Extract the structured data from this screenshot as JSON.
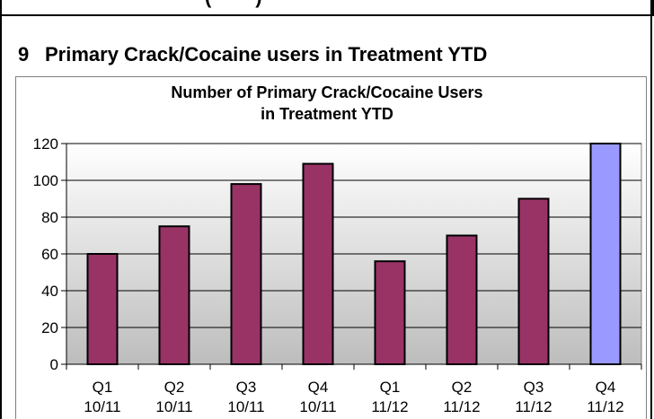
{
  "top_fragment": "(        )",
  "section": {
    "number": "9",
    "title": "Primary Crack/Cocaine users in Treatment YTD"
  },
  "chart_data": {
    "type": "bar",
    "title_lines": [
      "Number of Primary Crack/Cocaine Users",
      "in Treatment YTD"
    ],
    "categories": [
      [
        "Q1",
        "10/11"
      ],
      [
        "Q2",
        "10/11"
      ],
      [
        "Q3",
        "10/11"
      ],
      [
        "Q4",
        "10/11"
      ],
      [
        "Q1",
        "11/12"
      ],
      [
        "Q2",
        "11/12"
      ],
      [
        "Q3",
        "11/12"
      ],
      [
        "Q4",
        "11/12"
      ]
    ],
    "values": [
      60,
      75,
      98,
      109,
      56,
      70,
      90,
      120
    ],
    "bar_colors": [
      "#993366",
      "#993366",
      "#993366",
      "#993366",
      "#993366",
      "#993366",
      "#993366",
      "#9999ff"
    ],
    "ylim": [
      0,
      120
    ],
    "yticks": [
      0,
      20,
      40,
      60,
      80,
      100,
      120
    ],
    "grid": true,
    "plot_background": "gradient grey"
  }
}
